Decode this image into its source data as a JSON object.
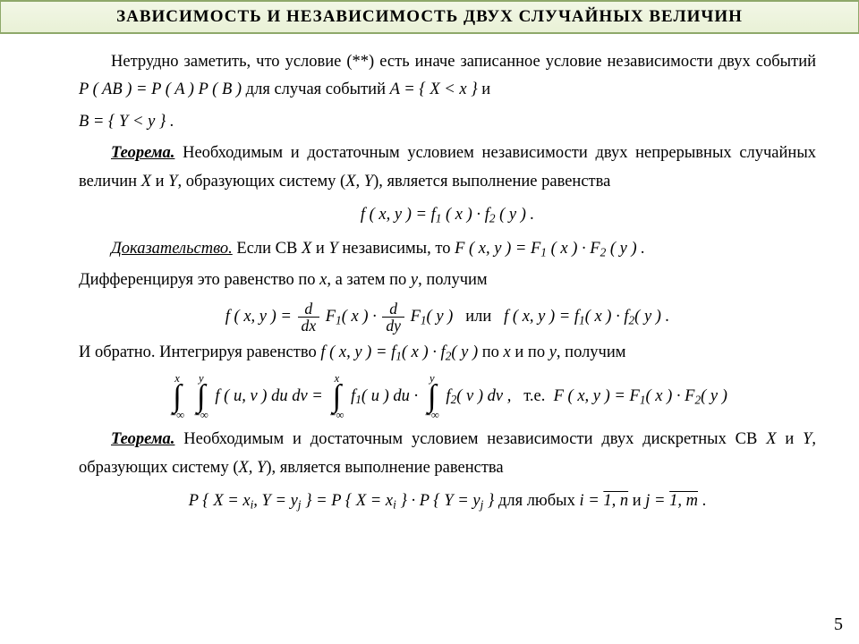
{
  "header": {
    "title": "ЗАВИСИМОСТЬ  И  НЕЗАВИСИМОСТЬ  ДВУХ  СЛУЧАЙНЫХ  ВЕЛИЧИН"
  },
  "p1": {
    "t1": "Нетрудно заметить, что условие (**)  есть иначе записанное условие независимости двух событий ",
    "f1": "P ( AB ) = P ( A ) P ( B )",
    "t2": " для случая событий ",
    "f2": "A = { X < x }",
    "t3": " и"
  },
  "p1b": {
    "f": "B = { Y < y } ."
  },
  "thm1": {
    "label": "Теорема.",
    "t1": " Необходимым и достаточным условием независимости двух непрерывных случайных величин ",
    "X": "X",
    "t2": " и ",
    "Y": "Y",
    "t3": ", образующих систему (",
    "XY": "X, Y",
    "t4": "), является выполнение равенства"
  },
  "eq1": {
    "lhs": "f ( x, y ) =",
    "r1": "f",
    "s1": "1",
    "r2": "( x ) ·",
    "r3": "f",
    "s2": "2",
    "r4": "( y ) ."
  },
  "proof": {
    "label": "Доказательство.",
    "t1": " Если СВ ",
    "X": "X",
    "t2": " и ",
    "Y": "Y",
    "t3": " независимы, то  ",
    "eq": {
      "lhs": "F ( x, y ) =",
      "a": "F",
      "s1": "1",
      "b": "( x ) ·",
      "c": "F",
      "s2": "2",
      "d": "( y ) ."
    }
  },
  "p3": {
    "t": "Дифференцируя это равенство по ",
    "x": "x",
    "t2": ", а затем по ",
    "y": "y",
    "t3": ", получим"
  },
  "eq2": {
    "lhs": "f ( x, y ) =",
    "d": {
      "num": "d",
      "den": "dx"
    },
    "F1": "F",
    "s1": "1",
    "arg1": "( x ) ·",
    "d2": {
      "num": "d",
      "den": "dy"
    },
    "F2": "F",
    "s12": "1",
    "arg2": "( y )",
    "or": "или",
    "rhs": "f ( x, y ) =",
    "f1": "f",
    "rs1": "1",
    "ra1": "( x ) ·",
    "f2": "f",
    "rs2": "2",
    "ra2": "( y ) ."
  },
  "p4": {
    "t1": "И обратно. Интегрируя равенство ",
    "eq": {
      "lhs": "f ( x, y ) =",
      "a": "f",
      "s1": "1",
      "b": "( x ) ·",
      "c": "f",
      "s2": "2",
      "d": "( y )"
    },
    "t2": " по ",
    "x": "x",
    "t3": " и по ",
    "y": "y",
    "t4": ", получим"
  },
  "eq3": {
    "i1": {
      "top": "x",
      "bot": "−∞"
    },
    "i2": {
      "top": "y",
      "bot": "−∞"
    },
    "fuv": "f ( u, v ) du dv  =",
    "i3": {
      "top": "x",
      "bot": "−∞"
    },
    "f1": "f",
    "s1": "1",
    "a1": "( u ) du ·",
    "i4": {
      "top": "y",
      "bot": "−∞"
    },
    "f2": "f",
    "s2": "2",
    "a2": "( v ) dv ,",
    "te": "т.е.",
    "rhs": {
      "lhs": "F ( x, y ) =",
      "a": "F",
      "s1": "1",
      "b": "( x ) ·",
      "c": "F",
      "s2": "2",
      "d": "( y )"
    }
  },
  "thm2": {
    "label": "Теорема.",
    "t1": " Необходимым и достаточным условием независимости двух дискретных СВ ",
    "X": "X",
    "t2": " и ",
    "Y": "Y",
    "t3": ", образующих систему (",
    "XY": "X, Y",
    "t4": "), является выполнение равенства"
  },
  "eq4": {
    "l1": "P { X = x",
    "si": "i",
    "l2": ", Y = y",
    "sj": "j",
    "l3": " } = P { X = x",
    "si2": "i",
    "l4": " } · P { Y = y",
    "sj2": "j",
    "l5": " }",
    "txt1": " для любых ",
    "i": "i = ",
    "rng1": "1, n",
    "txt2": " и ",
    "j": "j = ",
    "rng2": "1, m",
    "dot": " ."
  },
  "page": "5"
}
